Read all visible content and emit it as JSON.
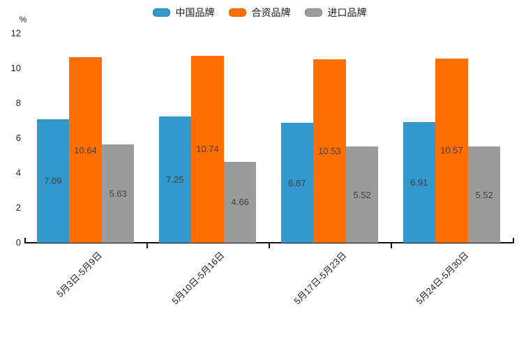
{
  "y_axis_unit": "%",
  "chart_data": {
    "type": "bar",
    "title": "",
    "xlabel": "",
    "ylabel": "%",
    "categories": [
      "5月3日-5月9日",
      "5月10日-5月16日",
      "5月17日-5月23日",
      "5月24日-5月30日"
    ],
    "series": [
      {
        "name": "中国品牌",
        "color": "#3398cb",
        "border_color": "#2482b2",
        "values": [
          7.09,
          7.25,
          6.87,
          6.91
        ]
      },
      {
        "name": "合资品牌",
        "color": "#ff6e00",
        "border_color": "#e06000",
        "values": [
          10.64,
          10.74,
          10.53,
          10.57
        ]
      },
      {
        "name": "进口品牌",
        "color": "#9b9b9b",
        "border_color": "#828282",
        "values": [
          5.63,
          4.66,
          5.52,
          5.52
        ]
      }
    ],
    "ylim": [
      0,
      12
    ],
    "y_ticks": [
      0,
      2,
      4,
      6,
      8,
      10,
      12
    ],
    "grid": false,
    "legend_position": "top-center",
    "value_labels_position": "inside-center",
    "value_label_color": "#3f3f3f",
    "axis_color": "#111111",
    "tick_label_color": "#262626"
  }
}
